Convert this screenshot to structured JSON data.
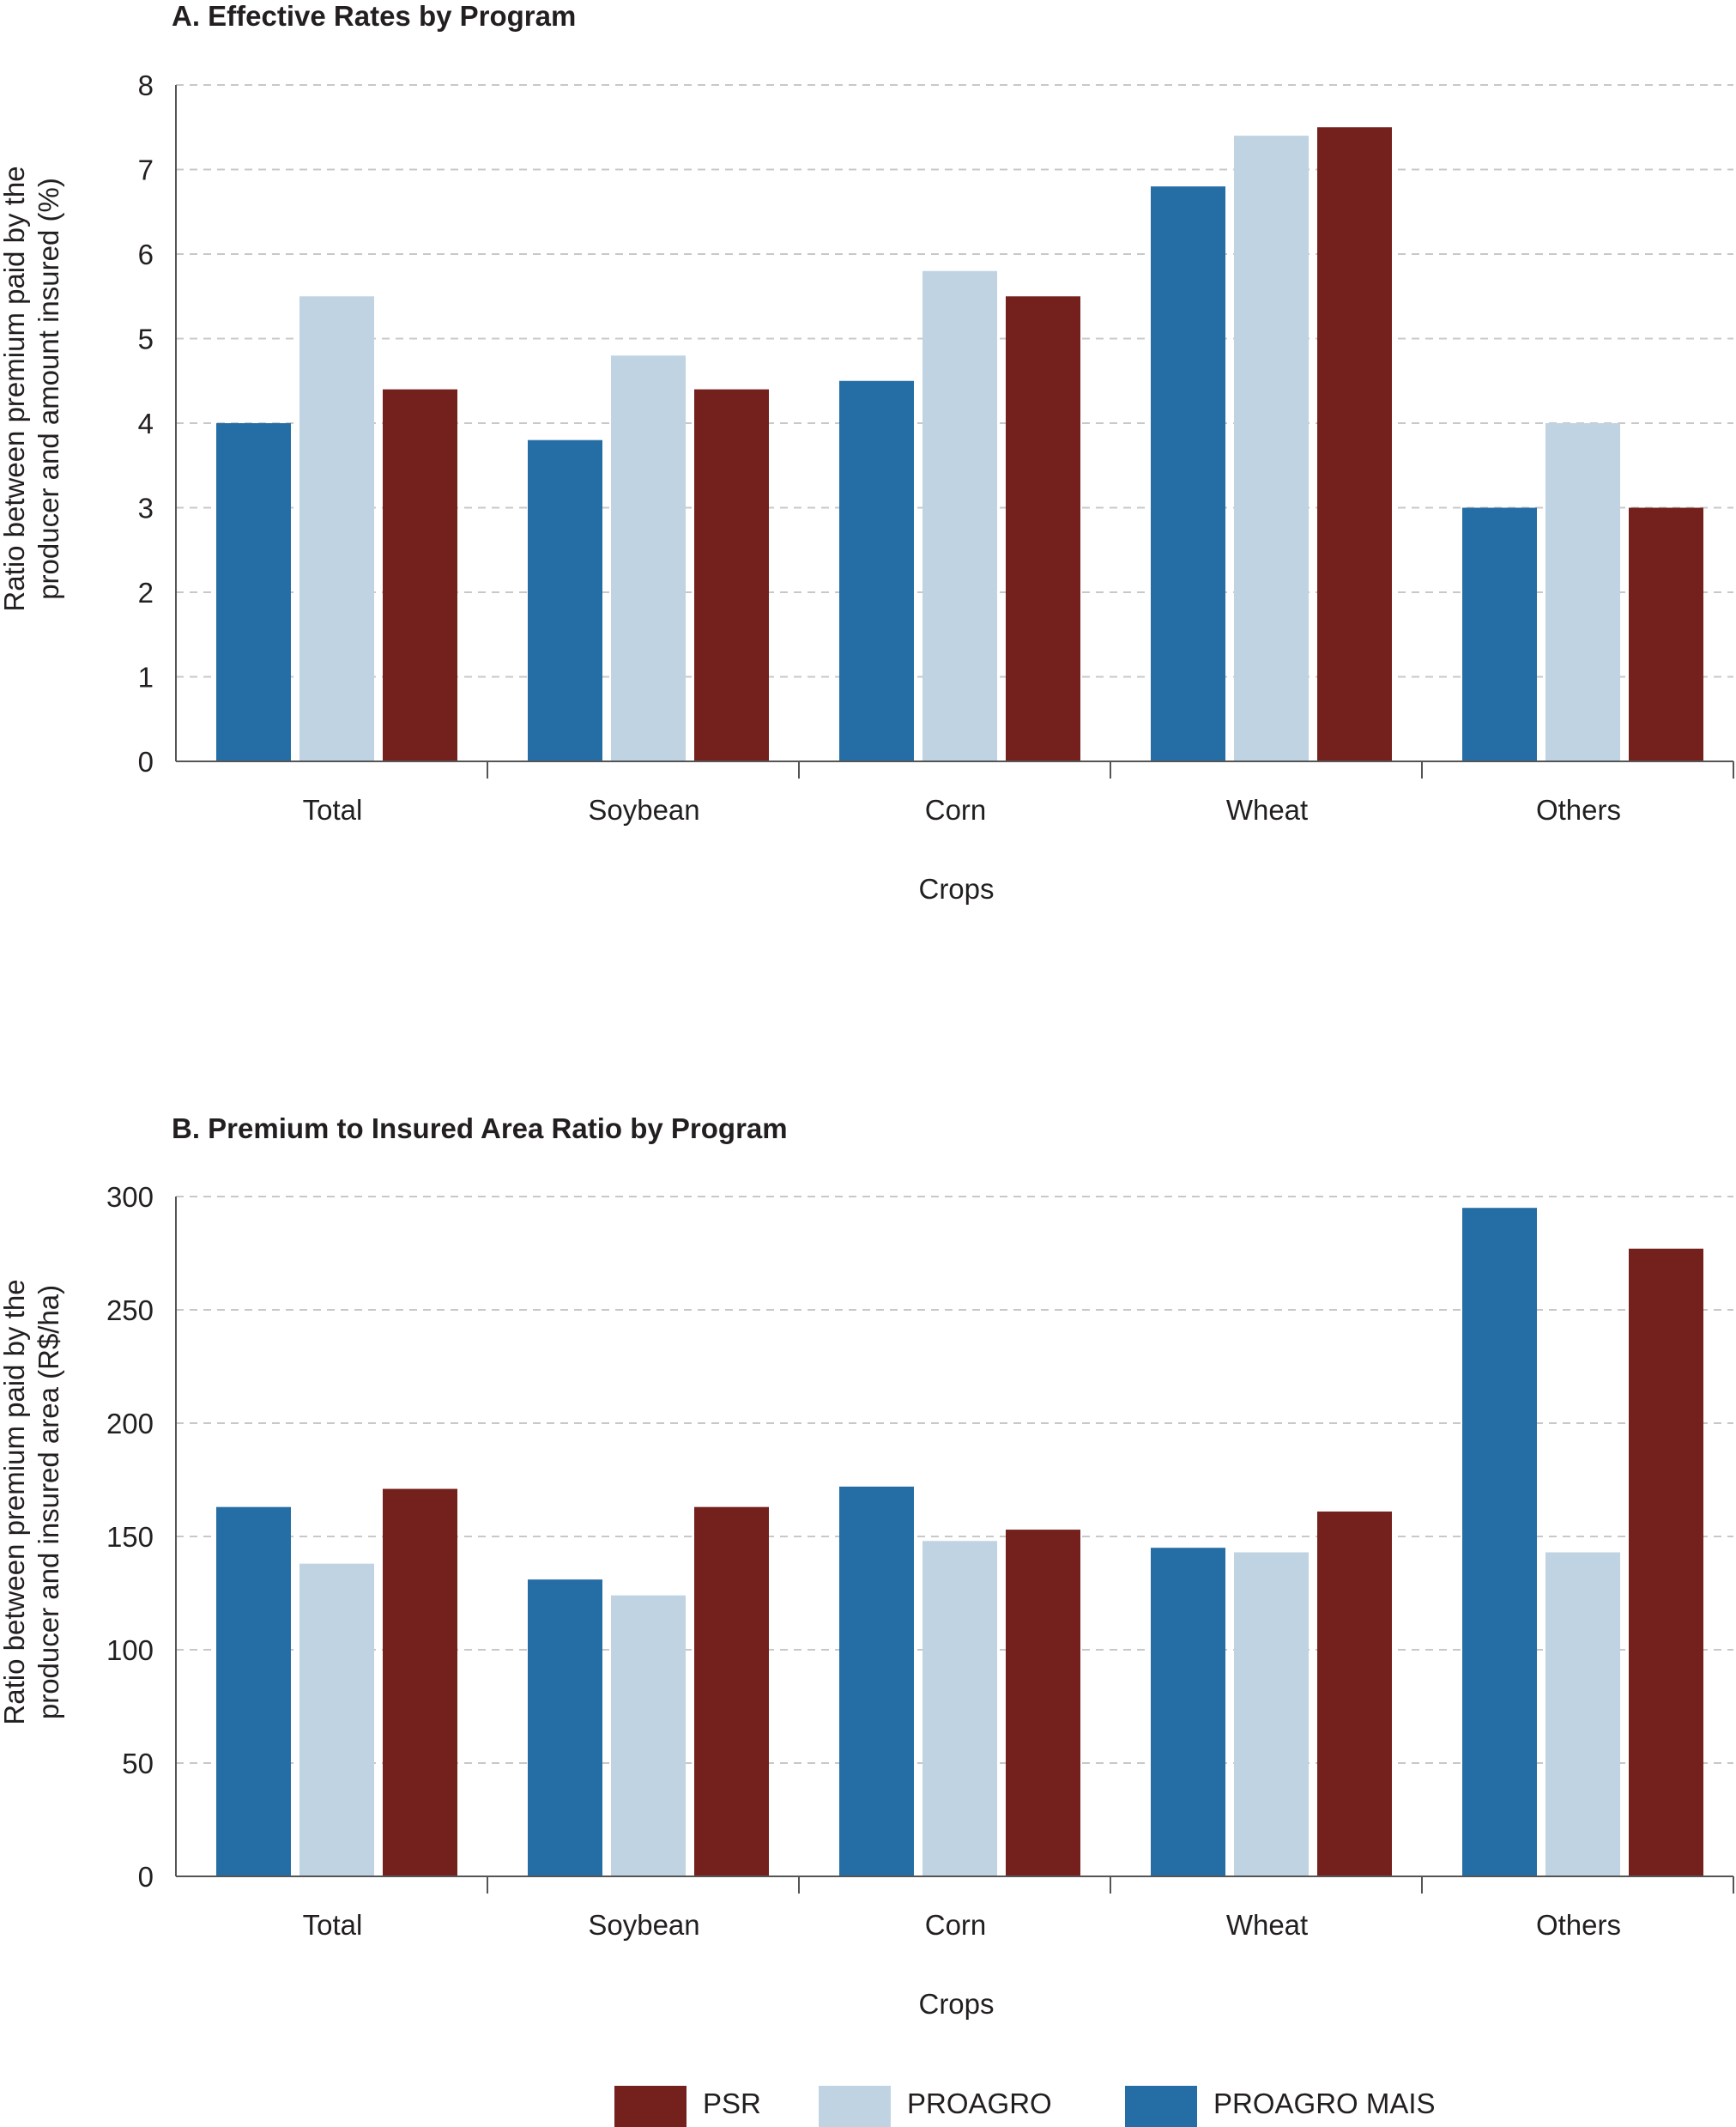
{
  "chart_data": [
    {
      "type": "bar",
      "title": "A. Effective Rates by Program",
      "xlabel": "Crops",
      "ylabel": "Ratio between premium paid by the producer and amount insured (%)",
      "ylabel_lines": [
        "Ratio between premium paid by the",
        "producer and amount insured (%)"
      ],
      "categories": [
        "Total",
        "Soybean",
        "Corn",
        "Wheat",
        "Others"
      ],
      "yticks": [
        0,
        1,
        2,
        3,
        4,
        5,
        6,
        7,
        8
      ],
      "ylim": [
        0,
        8
      ],
      "grid": true,
      "series": [
        {
          "name": "PROAGRO MAIS",
          "color": "#256ea5",
          "values": [
            4.0,
            3.8,
            4.5,
            6.8,
            3.0
          ]
        },
        {
          "name": "PROAGRO",
          "color": "#bfd3e3",
          "values": [
            5.5,
            4.8,
            5.8,
            7.4,
            4.0
          ]
        },
        {
          "name": "PSR",
          "color": "#74201c",
          "values": [
            4.4,
            4.4,
            5.5,
            7.5,
            3.0
          ]
        }
      ]
    },
    {
      "type": "bar",
      "title": "B. Premium to Insured Area Ratio by Program",
      "xlabel": "Crops",
      "ylabel": "Ratio between premium paid by the producer and insured area (R$/ha)",
      "ylabel_lines": [
        "Ratio between premium paid by the",
        "producer and insured area (R$/ha)"
      ],
      "categories": [
        "Total",
        "Soybean",
        "Corn",
        "Wheat",
        "Others"
      ],
      "yticks": [
        0,
        50,
        100,
        150,
        200,
        250,
        300
      ],
      "ylim": [
        0,
        300
      ],
      "grid": true,
      "series": [
        {
          "name": "PROAGRO MAIS",
          "color": "#256ea5",
          "values": [
            163,
            131,
            172,
            145,
            295
          ]
        },
        {
          "name": "PROAGRO",
          "color": "#bfd3e3",
          "values": [
            138,
            124,
            148,
            143,
            143
          ]
        },
        {
          "name": "PSR",
          "color": "#74201c",
          "values": [
            171,
            163,
            153,
            161,
            277
          ]
        }
      ]
    }
  ],
  "legend": {
    "placement": "bottom-center",
    "items": [
      {
        "label": "PSR",
        "color": "#74201c"
      },
      {
        "label": "PROAGRO",
        "color": "#bfd3e3"
      },
      {
        "label": "PROAGRO MAIS",
        "color": "#256ea5"
      }
    ]
  }
}
